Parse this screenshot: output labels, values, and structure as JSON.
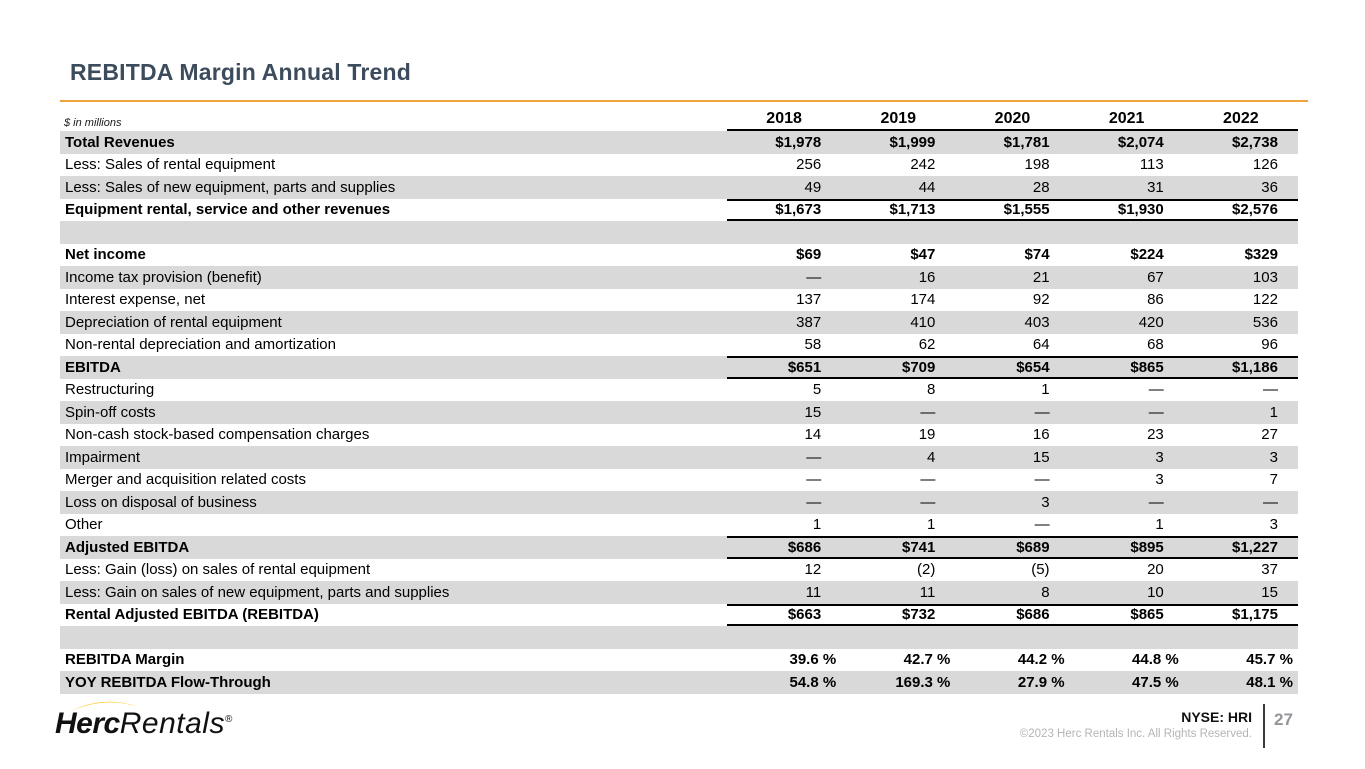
{
  "header": {
    "title": "REBITDA Margin Annual Trend"
  },
  "colors": {
    "title": "#3D4C5C",
    "accent_rule": "#F0A33C",
    "brand_yellow": "#FFC20E",
    "row_stripe": "#D9D9D9",
    "muted_gray": "#B5B5B5",
    "page_number_gray": "#939598"
  },
  "table": {
    "unit_note": "$ in millions",
    "years": [
      "2018",
      "2019",
      "2020",
      "2021",
      "2022"
    ],
    "rows": [
      {
        "label": "Total Revenues",
        "values": [
          "$1,978",
          "$1,999",
          "$1,781",
          "$2,074",
          "$2,738"
        ],
        "bold": true,
        "shaded": true
      },
      {
        "label": "Less: Sales of rental equipment",
        "values": [
          "256",
          "242",
          "198",
          "113",
          "126"
        ]
      },
      {
        "label": "Less: Sales of new equipment, parts and supplies",
        "values": [
          "49",
          "44",
          "28",
          "31",
          "36"
        ],
        "shaded": true
      },
      {
        "label": "Equipment rental, service and other revenues",
        "values": [
          "$1,673",
          "$1,713",
          "$1,555",
          "$1,930",
          "$2,576"
        ],
        "bold": true,
        "top_border": true,
        "bottom_border": true
      },
      {
        "spacer": true,
        "shaded": true
      },
      {
        "label": "Net income",
        "values": [
          "$69",
          "$47",
          "$74",
          "$224",
          "$329"
        ],
        "bold": true
      },
      {
        "label": "Income tax provision (benefit)",
        "values": [
          "—",
          "16",
          "21",
          "67",
          "103"
        ],
        "shaded": true
      },
      {
        "label": "Interest expense, net",
        "values": [
          "137",
          "174",
          "92",
          "86",
          "122"
        ]
      },
      {
        "label": "Depreciation of rental equipment",
        "values": [
          "387",
          "410",
          "403",
          "420",
          "536"
        ],
        "shaded": true
      },
      {
        "label": "Non-rental depreciation and amortization",
        "values": [
          "58",
          "62",
          "64",
          "68",
          "96"
        ]
      },
      {
        "label": "EBITDA",
        "values": [
          "$651",
          "$709",
          "$654",
          "$865",
          "$1,186"
        ],
        "bold": true,
        "shaded": true,
        "top_border": true,
        "bottom_border": true
      },
      {
        "label": "Restructuring",
        "values": [
          "5",
          "8",
          "1",
          "—",
          "—"
        ]
      },
      {
        "label": "Spin-off costs",
        "values": [
          "15",
          "—",
          "—",
          "—",
          "1"
        ],
        "shaded": true
      },
      {
        "label": "Non-cash stock-based compensation charges",
        "values": [
          "14",
          "19",
          "16",
          "23",
          "27"
        ]
      },
      {
        "label": "Impairment",
        "values": [
          "—",
          "4",
          "15",
          "3",
          "3"
        ],
        "shaded": true
      },
      {
        "label": "Merger and acquisition related costs",
        "values": [
          "—",
          "—",
          "—",
          "3",
          "7"
        ]
      },
      {
        "label": "Loss on disposal of business",
        "values": [
          "—",
          "—",
          "3",
          "—",
          "—"
        ],
        "shaded": true
      },
      {
        "label": "Other",
        "values": [
          "1",
          "1",
          "—",
          "1",
          "3"
        ]
      },
      {
        "label": "Adjusted EBITDA",
        "values": [
          "$686",
          "$741",
          "$689",
          "$895",
          "$1,227"
        ],
        "bold": true,
        "shaded": true,
        "top_border": true,
        "bottom_border": true
      },
      {
        "label": "Less: Gain (loss) on sales of rental equipment",
        "values": [
          "12",
          "(2)",
          "(5)",
          "20",
          "37"
        ]
      },
      {
        "label": "Less: Gain on sales of new equipment, parts and supplies",
        "values": [
          "11",
          "11",
          "8",
          "10",
          "15"
        ],
        "shaded": true
      },
      {
        "label": "Rental Adjusted EBITDA (REBITDA)",
        "values": [
          "$663",
          "$732",
          "$686",
          "$865",
          "$1,175"
        ],
        "bold": true,
        "top_border": true,
        "bottom_border": true
      },
      {
        "spacer": true,
        "shaded": true
      },
      {
        "label": "REBITDA Margin",
        "values": [
          "39.6 %",
          "42.7 %",
          "44.2 %",
          "44.8 %",
          "45.7 %"
        ],
        "bold": true,
        "percent": true
      },
      {
        "label": "YOY REBITDA Flow-Through",
        "values": [
          "54.8 %",
          "169.3 %",
          "27.9 %",
          "47.5 %",
          "48.1 %"
        ],
        "bold": true,
        "shaded": true,
        "percent": true
      }
    ]
  },
  "footer": {
    "logo_part_bold": "Herc",
    "logo_part_light": "Rentals",
    "logo_reg": "®",
    "ticker": "NYSE: HRI",
    "copyright": "©2023 Herc Rentals Inc.  All Rights Reserved.",
    "page_number": "27"
  }
}
